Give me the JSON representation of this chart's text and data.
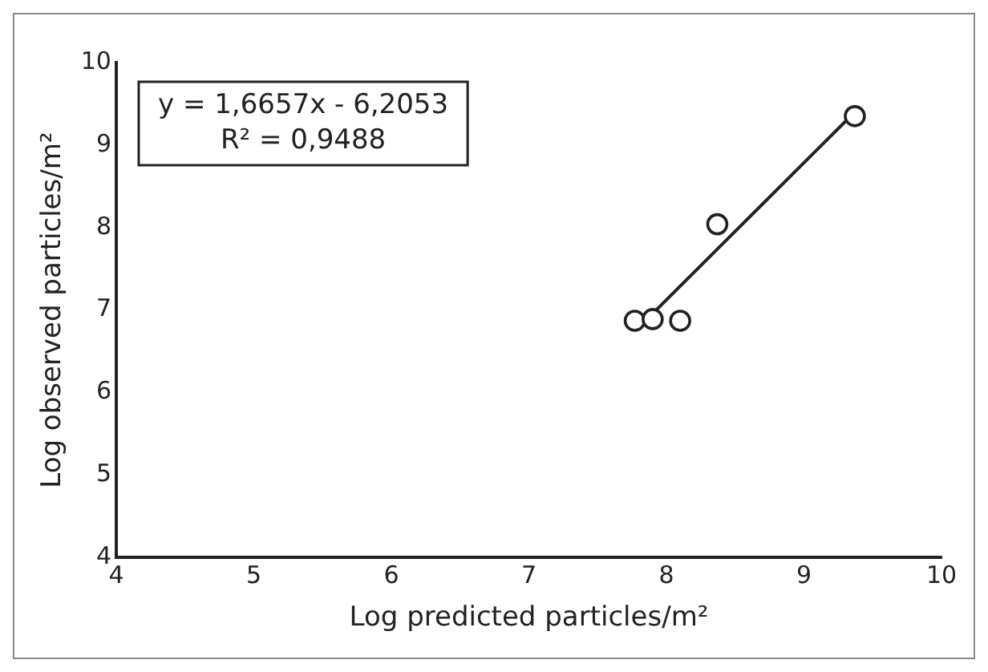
{
  "chart_data": {
    "type": "scatter",
    "xlabel": "Log predicted particles/m²",
    "ylabel": "Log observed particles/m²",
    "annotations": [
      "y = 1,6657x - 6,2053",
      "R² = 0,9488"
    ],
    "series": [
      {
        "color": "#222222",
        "x": [
          7.77,
          7.9,
          8.1,
          8.37,
          9.37
        ],
        "values": [
          6.87,
          6.89,
          6.87,
          8.04,
          9.35
        ],
        "marker": "circle"
      },
      {
        "type": "line",
        "color": "#222222",
        "x": [
          7.8,
          9.37
        ],
        "values": [
          6.79,
          9.4
        ],
        "marker": "none",
        "line_style": "solid"
      }
    ],
    "xlim": [
      4,
      10
    ],
    "ylim": [
      4,
      10
    ],
    "xticks": [
      4,
      5,
      6,
      7,
      8,
      9,
      10
    ],
    "yticks": [
      4,
      5,
      6,
      7,
      8,
      9,
      10
    ],
    "grid": false,
    "legend": false
  }
}
